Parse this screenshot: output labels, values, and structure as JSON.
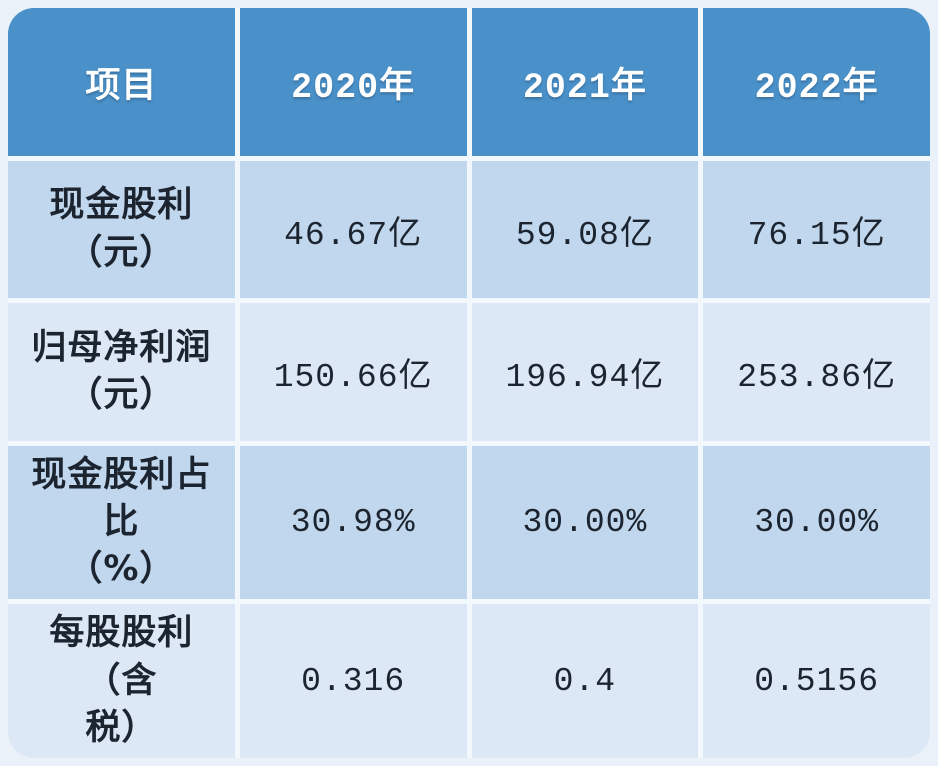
{
  "table": {
    "header": {
      "item_label": "项目",
      "years": [
        "2020年",
        "2021年",
        "2022年"
      ]
    },
    "rows": [
      {
        "label": "现金股利\n（元）",
        "values": [
          "46.67亿",
          "59.08亿",
          "76.15亿"
        ]
      },
      {
        "label": "归母净利润\n（元）",
        "values": [
          "150.66亿",
          "196.94亿",
          "253.86亿"
        ]
      },
      {
        "label": "现金股利占比\n（%）",
        "values": [
          "30.98%",
          "30.00%",
          "30.00%"
        ]
      },
      {
        "label": "每股股利（含\n税）",
        "values": [
          "0.316",
          "0.4",
          "0.5156"
        ]
      }
    ],
    "colors": {
      "page_bg": "#eaf1f8",
      "header_bg": "#4a91c9",
      "header_text": "#ffffff",
      "row_dark_bg": "#c1d7ed",
      "row_light_bg": "#dce8f5",
      "grid_line": "#f3f8fd",
      "cell_text": "#1c2430"
    }
  },
  "chart_data": {
    "type": "table",
    "title": "",
    "columns": [
      "项目",
      "2020年",
      "2021年",
      "2022年"
    ],
    "rows": [
      [
        "现金股利（元）",
        "46.67亿",
        "59.08亿",
        "76.15亿"
      ],
      [
        "归母净利润（元）",
        "150.66亿",
        "196.94亿",
        "253.86亿"
      ],
      [
        "现金股利占比（%）",
        "30.98%",
        "30.00%",
        "30.00%"
      ],
      [
        "每股股利（含税）",
        "0.316",
        "0.4",
        "0.5156"
      ]
    ],
    "layout_hints": {
      "header_style": "solid blue bar, white bold text",
      "body_style": "alternating light blue rows (odd darker, even lighter)",
      "corner_radius": "rounded outer corners",
      "grid": "thin white separators"
    }
  }
}
